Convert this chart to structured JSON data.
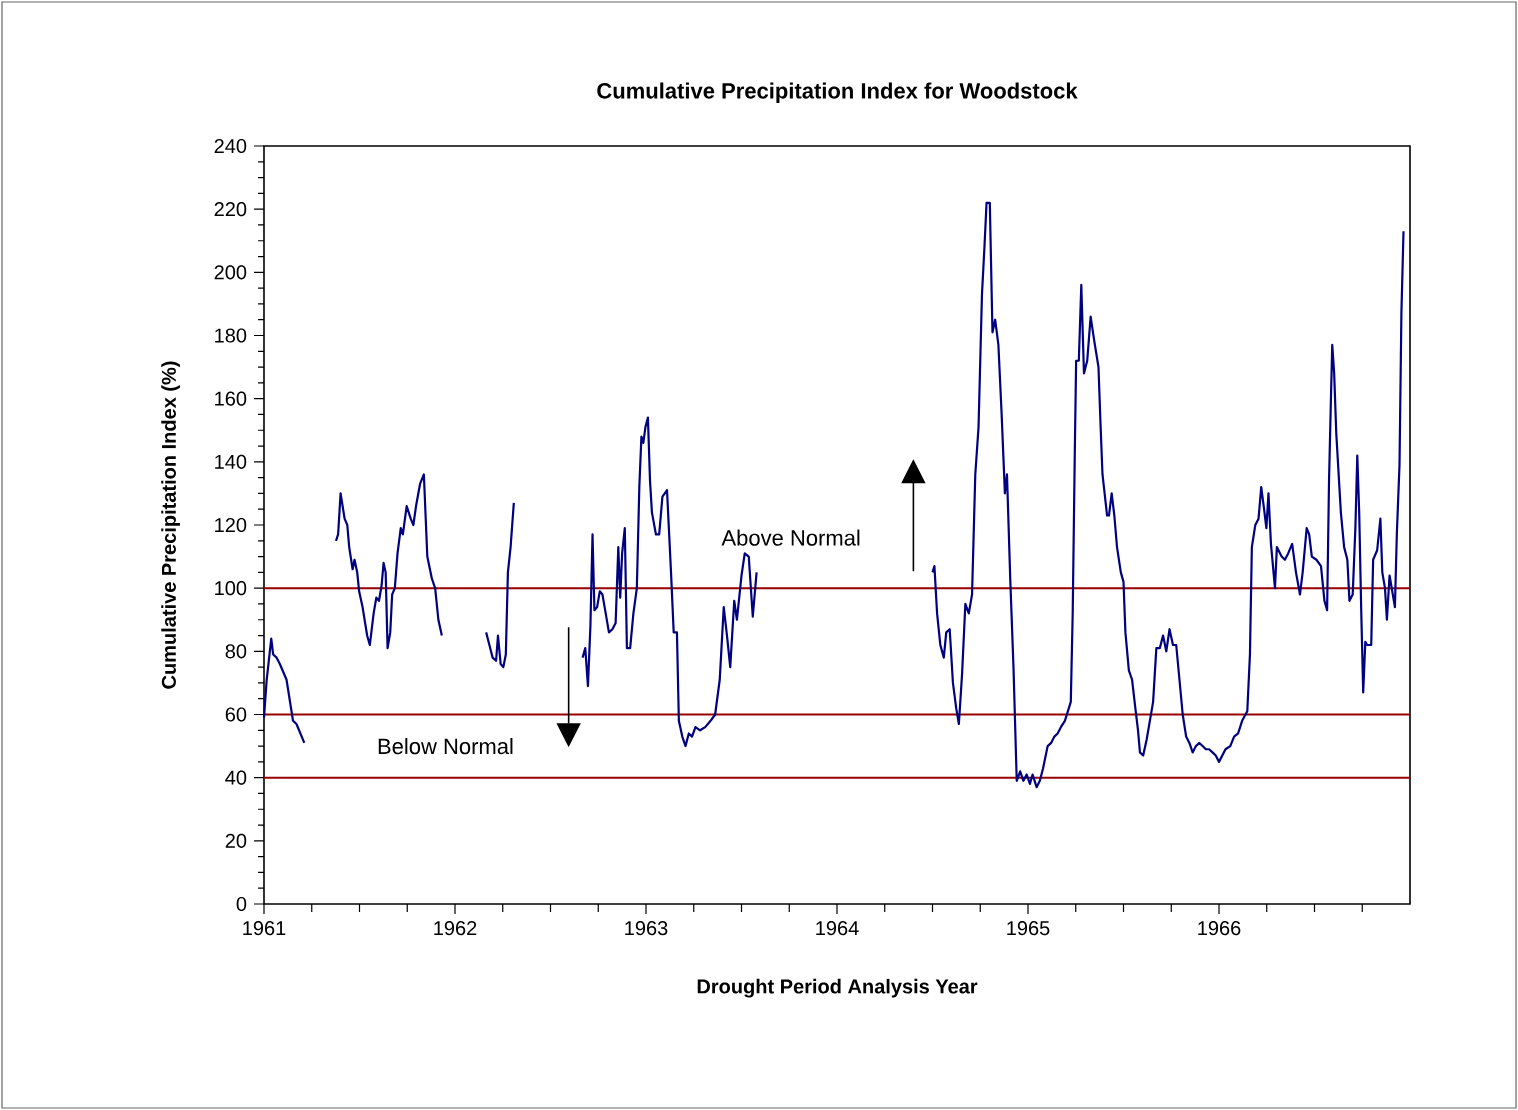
{
  "chart_data": {
    "type": "line",
    "title": "Cumulative Precipitation Index for Woodstock",
    "xlabel": "Drought Period Analysis Year",
    "ylabel": "Cumulative Precipitation Index (%)",
    "xlim": [
      1961,
      1967
    ],
    "ylim": [
      0,
      240
    ],
    "xticks": [
      1961,
      {
        "value": 1961.25,
        "label": null
      },
      {
        "value": 1961.5,
        "label": null
      },
      {
        "value": 1961.75,
        "label": null
      },
      1962,
      {
        "value": 1962.25,
        "label": null
      },
      {
        "value": 1962.5,
        "label": null
      },
      {
        "value": 1962.75,
        "label": null
      },
      1963,
      {
        "value": 1963.25,
        "label": null
      },
      {
        "value": 1963.5,
        "label": null
      },
      {
        "value": 1963.75,
        "label": null
      },
      1964,
      {
        "value": 1964.25,
        "label": null
      },
      {
        "value": 1964.5,
        "label": null
      },
      {
        "value": 1964.75,
        "label": null
      },
      1965,
      {
        "value": 1965.25,
        "label": null
      },
      {
        "value": 1965.5,
        "label": null
      },
      {
        "value": 1965.75,
        "label": null
      },
      1966,
      {
        "value": 1966.25,
        "label": null
      },
      {
        "value": 1966.5,
        "label": null
      },
      {
        "value": 1966.75,
        "label": null
      }
    ],
    "yticks": [
      0,
      {
        "value": 5,
        "label": null
      },
      {
        "value": 10,
        "label": null
      },
      {
        "value": 15,
        "label": null
      },
      20,
      {
        "value": 25,
        "label": null
      },
      {
        "value": 30,
        "label": null
      },
      {
        "value": 35,
        "label": null
      },
      40,
      {
        "value": 45,
        "label": null
      },
      {
        "value": 50,
        "label": null
      },
      {
        "value": 55,
        "label": null
      },
      60,
      {
        "value": 65,
        "label": null
      },
      {
        "value": 70,
        "label": null
      },
      {
        "value": 75,
        "label": null
      },
      80,
      {
        "value": 85,
        "label": null
      },
      {
        "value": 90,
        "label": null
      },
      {
        "value": 95,
        "label": null
      },
      100,
      {
        "value": 105,
        "label": null
      },
      {
        "value": 110,
        "label": null
      },
      {
        "value": 115,
        "label": null
      },
      120,
      {
        "value": 125,
        "label": null
      },
      {
        "value": 130,
        "label": null
      },
      {
        "value": 135,
        "label": null
      },
      140,
      {
        "value": 145,
        "label": null
      },
      {
        "value": 150,
        "label": null
      },
      {
        "value": 155,
        "label": null
      },
      160,
      {
        "value": 165,
        "label": null
      },
      {
        "value": 170,
        "label": null
      },
      {
        "value": 175,
        "label": null
      },
      180,
      {
        "value": 185,
        "label": null
      },
      {
        "value": 190,
        "label": null
      },
      {
        "value": 195,
        "label": null
      },
      200,
      {
        "value": 205,
        "label": null
      },
      {
        "value": 210,
        "label": null
      },
      {
        "value": 215,
        "label": null
      },
      220,
      {
        "value": 225,
        "label": null
      },
      {
        "value": 230,
        "label": null
      },
      {
        "value": 235,
        "label": null
      },
      240
    ],
    "series": [
      {
        "color": "#000080",
        "x": [
          1961.0,
          1961.014,
          1961.038,
          1961.048,
          1961.066,
          1961.083,
          1961.118,
          1961.152,
          1961.17,
          1961.211,
          1961.3,
          1961.377,
          1961.388,
          1961.401,
          1961.422,
          1961.436,
          1961.446,
          1961.464,
          1961.474,
          1961.488,
          1961.498,
          1961.516,
          1961.54,
          1961.554,
          1961.574,
          1961.588,
          1961.602,
          1961.616,
          1961.626,
          1961.637,
          1961.647,
          1961.661,
          1961.671,
          1961.685,
          1961.699,
          1961.716,
          1961.727,
          1961.747,
          1961.768,
          1961.782,
          1961.796,
          1961.817,
          1961.837,
          1961.855,
          1961.879,
          1961.896,
          1961.913,
          1961.931,
          1962.05,
          1962.163,
          1962.18,
          1962.197,
          1962.215,
          1962.225,
          1962.239,
          1962.253,
          1962.266,
          1962.277,
          1962.291,
          1962.308,
          1962.5,
          1962.668,
          1962.682,
          1962.696,
          1962.709,
          1962.72,
          1962.73,
          1962.744,
          1962.758,
          1962.772,
          1962.789,
          1962.806,
          1962.824,
          1962.841,
          1962.855,
          1962.865,
          1962.875,
          1962.889,
          1962.9,
          1962.917,
          1962.934,
          1962.952,
          1962.965,
          1962.976,
          1962.986,
          1962.997,
          1963.01,
          1963.021,
          1963.031,
          1963.052,
          1963.069,
          1963.086,
          1963.11,
          1963.131,
          1963.145,
          1963.162,
          1963.172,
          1963.19,
          1963.207,
          1963.224,
          1963.241,
          1963.259,
          1963.283,
          1963.31,
          1963.338,
          1963.362,
          1963.386,
          1963.407,
          1963.424,
          1963.441,
          1963.462,
          1963.476,
          1963.5,
          1963.517,
          1963.538,
          1963.559,
          1963.579,
          1964.0,
          1964.5,
          1964.51,
          1964.524,
          1964.541,
          1964.559,
          1964.572,
          1964.59,
          1964.607,
          1964.624,
          1964.638,
          1964.655,
          1964.672,
          1964.69,
          1964.707,
          1964.724,
          1964.741,
          1964.759,
          1964.772,
          1964.783,
          1964.8,
          1964.814,
          1964.828,
          1964.845,
          1964.862,
          1964.879,
          1964.89,
          1964.907,
          1964.924,
          1964.941,
          1964.959,
          1964.976,
          1964.993,
          1965.01,
          1965.024,
          1965.045,
          1965.062,
          1965.079,
          1965.103,
          1965.121,
          1965.138,
          1965.155,
          1965.172,
          1965.193,
          1965.224,
          1965.234,
          1965.245,
          1965.252,
          1965.266,
          1965.279,
          1965.286,
          1965.293,
          1965.31,
          1965.328,
          1965.345,
          1965.369,
          1965.379,
          1965.39,
          1965.403,
          1965.414,
          1965.424,
          1965.438,
          1965.452,
          1965.466,
          1965.486,
          1965.5,
          1965.51,
          1965.528,
          1965.545,
          1965.562,
          1965.576,
          1965.586,
          1965.603,
          1965.621,
          1965.638,
          1965.655,
          1965.672,
          1965.69,
          1965.707,
          1965.724,
          1965.741,
          1965.759,
          1965.776,
          1965.793,
          1965.81,
          1965.828,
          1965.845,
          1965.862,
          1965.879,
          1965.897,
          1965.914,
          1965.931,
          1965.948,
          1965.966,
          1965.983,
          1966.0,
          1966.017,
          1966.034,
          1966.059,
          1966.079,
          1966.1,
          1966.121,
          1966.148,
          1966.162,
          1966.172,
          1966.19,
          1966.207,
          1966.221,
          1966.234,
          1966.248,
          1966.259,
          1966.272,
          1966.293,
          1966.303,
          1966.328,
          1966.345,
          1966.362,
          1966.383,
          1966.403,
          1966.424,
          1966.438,
          1966.459,
          1966.472,
          1966.486,
          1966.51,
          1966.534,
          1966.552,
          1966.566,
          1966.576,
          1966.586,
          1966.593,
          1966.603,
          1966.614,
          1966.638,
          1966.655,
          1966.672,
          1966.683,
          1966.7,
          1966.714,
          1966.724,
          1966.734,
          1966.745,
          1966.755,
          1966.766,
          1966.776,
          1966.797,
          1966.807,
          1966.828,
          1966.845,
          1966.855,
          1966.869,
          1966.879,
          1966.893,
          1966.907,
          1966.921,
          1966.931,
          1966.945,
          1966.955,
          1966.966
        ],
        "values": [
          59,
          71,
          84,
          79,
          78,
          76,
          71,
          58,
          57,
          51,
          null,
          115,
          117,
          130,
          122,
          120,
          113,
          106,
          109,
          105,
          99,
          94,
          85,
          82,
          92,
          97,
          96,
          101,
          108,
          105,
          81,
          86,
          98,
          100,
          111,
          119,
          117,
          126,
          122,
          120,
          126,
          133,
          136,
          110,
          103,
          100,
          90,
          85,
          null,
          86,
          82,
          78,
          77,
          85,
          76,
          75,
          79,
          105,
          113,
          127,
          null,
          78,
          81,
          69,
          88,
          117,
          93,
          94,
          99,
          98,
          92,
          86,
          87,
          89,
          113,
          97,
          111,
          119,
          81,
          81,
          92,
          100,
          132,
          148,
          146,
          151,
          154,
          134,
          124,
          117,
          117,
          129,
          131,
          105,
          86,
          86,
          58,
          53,
          50,
          54,
          53,
          56,
          55,
          56,
          58,
          60,
          71,
          94,
          85,
          75,
          96,
          90,
          104,
          111,
          110,
          91,
          105,
          null,
          105,
          107,
          92,
          82,
          78,
          86,
          87,
          70,
          62,
          57,
          73,
          95,
          92,
          98,
          136,
          151,
          193,
          208,
          222,
          222,
          181,
          185,
          177,
          155,
          130,
          136,
          103,
          75,
          39,
          42,
          39,
          41,
          38,
          41,
          37,
          39,
          43,
          50,
          51,
          53,
          54,
          56,
          58,
          64,
          92,
          143,
          172,
          172,
          196,
          182,
          168,
          172,
          186,
          179,
          170,
          153,
          136,
          129,
          123,
          123,
          130,
          123,
          113,
          105,
          102,
          86,
          74,
          71,
          62,
          55,
          48,
          47,
          52,
          58,
          64,
          81,
          81,
          85,
          80,
          87,
          82,
          82,
          71,
          60,
          53,
          51,
          48,
          50,
          51,
          50,
          49,
          49,
          48,
          47,
          45,
          47,
          49,
          50,
          53,
          54,
          58,
          61,
          79,
          113,
          120,
          122,
          132,
          126,
          119,
          130,
          114,
          100,
          113,
          110,
          109,
          111,
          114,
          105,
          98,
          105,
          119,
          117,
          110,
          109,
          107,
          96,
          93,
          134,
          160,
          177,
          168,
          149,
          124,
          113,
          109,
          96,
          98,
          119,
          142,
          124,
          92,
          67,
          83,
          82,
          82,
          109,
          112,
          122,
          105,
          100,
          90,
          104,
          99,
          94,
          117,
          139,
          187,
          213
        ]
      }
    ],
    "ref_lines": [
      {
        "axis": "y",
        "value": 100,
        "color": "#990000"
      },
      {
        "axis": "y",
        "value": 60,
        "color": "#990000"
      },
      {
        "axis": "y",
        "value": 40,
        "color": "#990000"
      }
    ],
    "annotations": [
      "Above Normal",
      "Below Normal"
    ]
  }
}
